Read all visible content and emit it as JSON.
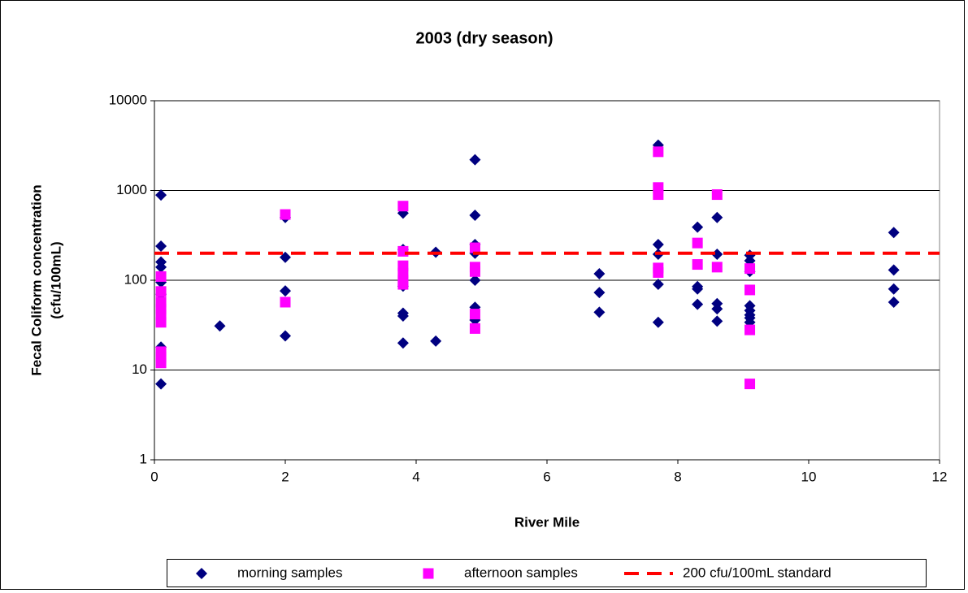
{
  "chart_data": {
    "type": "scatter",
    "title": "2003 (dry season)",
    "x_label": "River Mile",
    "y_label": [
      "Fecal Coliform concentration",
      "(cfu/100mL)"
    ],
    "xlim": [
      0,
      12
    ],
    "xticks": [
      0,
      2,
      4,
      6,
      8,
      10,
      12
    ],
    "ylim": [
      1,
      10000
    ],
    "yticks": [
      1,
      10,
      100,
      1000,
      10000
    ],
    "ylog": true,
    "grid": true,
    "series": [
      {
        "name": "morning samples",
        "color": "#000080",
        "marker": "diamond",
        "x": [
          0.1,
          0.1,
          0.1,
          0.1,
          0.1,
          0.1,
          0.1,
          0.1,
          1,
          2,
          2,
          2,
          2,
          3.8,
          3.8,
          3.8,
          3.8,
          3.8,
          3.8,
          4.3,
          4.3,
          4.9,
          4.9,
          4.9,
          4.9,
          4.9,
          4.9,
          4.9,
          6.8,
          6.8,
          6.8,
          7.7,
          7.7,
          7.7,
          7.7,
          7.7,
          8.3,
          8.3,
          8.3,
          8.3,
          8.6,
          8.6,
          8.6,
          8.6,
          8.6,
          9.1,
          9.1,
          9.1,
          9.1,
          9.1,
          9.1,
          9.1,
          9.1,
          11.3,
          11.3,
          11.3,
          11.3
        ],
        "values": [
          890,
          240,
          160,
          140,
          95,
          70,
          18,
          7,
          31,
          500,
          180,
          76,
          24,
          560,
          220,
          86,
          43,
          40,
          20,
          205,
          21,
          2200,
          530,
          250,
          200,
          100,
          50,
          36,
          118,
          73,
          44,
          3200,
          250,
          195,
          90,
          34,
          390,
          85,
          80,
          54,
          500,
          195,
          55,
          48,
          35,
          190,
          165,
          125,
          52,
          46,
          41,
          38,
          34,
          340,
          130,
          80,
          57
        ]
      },
      {
        "name": "afternoon samples",
        "color": "#ff00ff",
        "marker": "square",
        "x": [
          0.1,
          0.1,
          0.1,
          0.1,
          0.1,
          0.1,
          0.1,
          0.1,
          0.1,
          2,
          2,
          3.8,
          3.8,
          3.8,
          3.8,
          3.8,
          3.8,
          4.9,
          4.9,
          4.9,
          4.9,
          4.9,
          7.7,
          7.7,
          7.7,
          7.7,
          7.7,
          8.3,
          8.3,
          8.6,
          8.6,
          9.1,
          9.1,
          9.1,
          9.1
        ],
        "values": [
          110,
          75,
          57,
          48,
          41,
          34,
          16,
          14,
          12,
          540,
          57,
          670,
          210,
          145,
          120,
          100,
          90,
          230,
          140,
          125,
          42,
          29,
          2700,
          1080,
          900,
          137,
          122,
          260,
          150,
          900,
          140,
          135,
          78,
          28,
          7
        ]
      }
    ],
    "standard": {
      "name": "200 cfu/100mL standard",
      "value": 200,
      "color": "#ff0000"
    }
  }
}
